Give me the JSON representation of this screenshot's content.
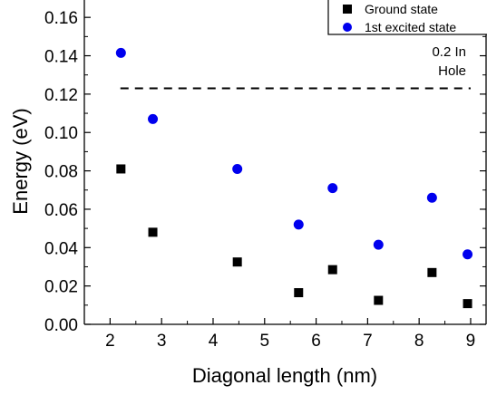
{
  "chart_data": {
    "type": "scatter",
    "xlabel": "Diagonal length (nm)",
    "ylabel": "Energy (eV)",
    "xlim": [
      1.5,
      9.3
    ],
    "ylim": [
      0.0,
      0.17
    ],
    "xticks": [
      2,
      3,
      4,
      5,
      6,
      7,
      8,
      9
    ],
    "yticks": [
      0.0,
      0.02,
      0.04,
      0.06,
      0.08,
      0.1,
      0.12,
      0.14,
      0.16
    ],
    "legend_position": "top-right",
    "series": [
      {
        "name": "Ground state",
        "marker": "square",
        "color": "#000000",
        "x": [
          2.21,
          2.83,
          4.47,
          5.66,
          6.32,
          7.21,
          8.25,
          8.94
        ],
        "y": [
          0.081,
          0.048,
          0.0325,
          0.0165,
          0.0285,
          0.0125,
          0.027,
          0.0108
        ]
      },
      {
        "name": "1st excited state",
        "marker": "circle",
        "color": "#0000ee",
        "x": [
          2.21,
          2.83,
          4.47,
          5.66,
          6.32,
          7.21,
          8.25,
          8.94
        ],
        "y": [
          0.1415,
          0.107,
          0.081,
          0.052,
          0.071,
          0.0415,
          0.066,
          0.0365
        ]
      }
    ],
    "reference_line": {
      "style": "dashed",
      "color": "#000000",
      "y": 0.123,
      "x_range": [
        2.2,
        9.0
      ],
      "label_lines": [
        "0.2 In",
        "Hole"
      ]
    }
  }
}
